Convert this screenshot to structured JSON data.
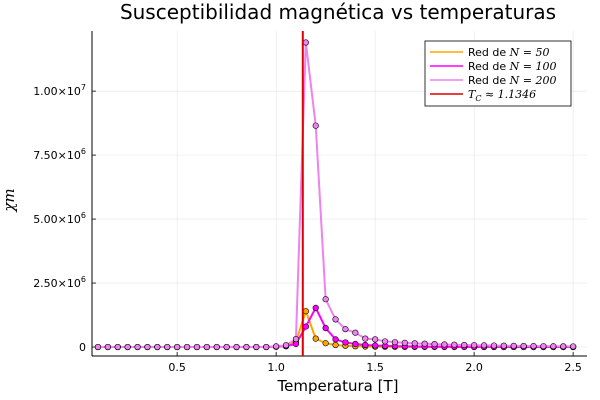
{
  "chart_data": {
    "type": "line",
    "title": "Susceptibilidad magnética vs temperaturas",
    "xlabel": "Temperatura [T]",
    "ylabel": "χ_m",
    "ylabel_display": "χm",
    "xlim": [
      0.07,
      2.57
    ],
    "ylim": [
      -350000,
      12350000
    ],
    "xticks": [
      0.5,
      1.0,
      1.5,
      2.0,
      2.5
    ],
    "xtick_labels": [
      "0.5",
      "1.0",
      "1.5",
      "2.0",
      "2.5"
    ],
    "yticks": [
      0,
      2500000,
      5000000,
      7500000,
      10000000
    ],
    "ytick_labels": [
      {
        "mant": "0",
        "exp": ""
      },
      {
        "mant": "2.50×10",
        "exp": "6"
      },
      {
        "mant": "5.00×10",
        "exp": "6"
      },
      {
        "mant": "7.50×10",
        "exp": "6"
      },
      {
        "mant": "1.00×10",
        "exp": "7"
      }
    ],
    "grid": true,
    "legend_position": "top-right",
    "x": [
      0.1,
      0.15,
      0.2,
      0.25,
      0.3,
      0.35,
      0.4,
      0.45,
      0.5,
      0.55,
      0.6,
      0.65,
      0.7,
      0.75,
      0.8,
      0.85,
      0.9,
      0.95,
      1.0,
      1.05,
      1.1,
      1.15,
      1.2,
      1.25,
      1.3,
      1.35,
      1.4,
      1.45,
      1.5,
      1.55,
      1.6,
      1.65,
      1.7,
      1.75,
      1.8,
      1.85,
      1.9,
      1.95,
      2.0,
      2.05,
      2.1,
      2.15,
      2.2,
      2.25,
      2.3,
      2.35,
      2.4,
      2.45,
      2.5
    ],
    "series": [
      {
        "name": "Red de N = 50",
        "legend_prefix": "Red de ",
        "legend_math": "N = 50",
        "color": "#ffa500",
        "values": [
          0,
          0,
          0,
          0,
          0,
          0,
          0,
          0,
          0,
          0,
          0,
          0,
          0,
          0,
          0,
          0,
          0,
          0,
          10000,
          30000,
          200000,
          1400000,
          330000,
          150000,
          80000,
          50000,
          30000,
          20000,
          15000,
          10000,
          8000,
          6000,
          5000,
          4000,
          3500,
          3000,
          2500,
          2000,
          1800,
          1600,
          1400,
          1200,
          1000,
          900,
          800,
          700,
          600,
          500,
          400
        ]
      },
      {
        "name": "Red de N = 100",
        "legend_prefix": "Red de ",
        "legend_math": "N = 100",
        "color": "#ff00ff",
        "values": [
          0,
          0,
          0,
          0,
          0,
          0,
          0,
          0,
          0,
          0,
          0,
          0,
          0,
          0,
          0,
          0,
          0,
          0,
          15000,
          40000,
          120000,
          800000,
          1530000,
          740000,
          300000,
          180000,
          120000,
          80000,
          60000,
          45000,
          35000,
          28000,
          22000,
          18000,
          15000,
          12000,
          10000,
          8500,
          7000,
          6000,
          5000,
          4500,
          4000,
          3500,
          3000,
          2700,
          2400,
          2100,
          1800
        ]
      },
      {
        "name": "Red de N = 200",
        "legend_prefix": "Red de ",
        "legend_math": "N = 200",
        "color": "#ee82ee",
        "values": [
          0,
          0,
          0,
          0,
          0,
          0,
          0,
          0,
          0,
          0,
          0,
          0,
          0,
          0,
          0,
          0,
          0,
          0,
          25000,
          70000,
          310000,
          11900000,
          8650000,
          1870000,
          1080000,
          700000,
          560000,
          330000,
          300000,
          220000,
          190000,
          165000,
          145000,
          130000,
          115000,
          100000,
          90000,
          80000,
          72000,
          65000,
          58000,
          52000,
          47000,
          42000,
          38000,
          34000,
          30000,
          27000,
          24000
        ]
      }
    ],
    "vline": {
      "name": "T_C ≈ 1.1346",
      "legend_math": "T",
      "legend_sub": "C",
      "legend_rest": " ≈ 1.1346",
      "x": 1.1346,
      "color": "#dc0000"
    }
  }
}
